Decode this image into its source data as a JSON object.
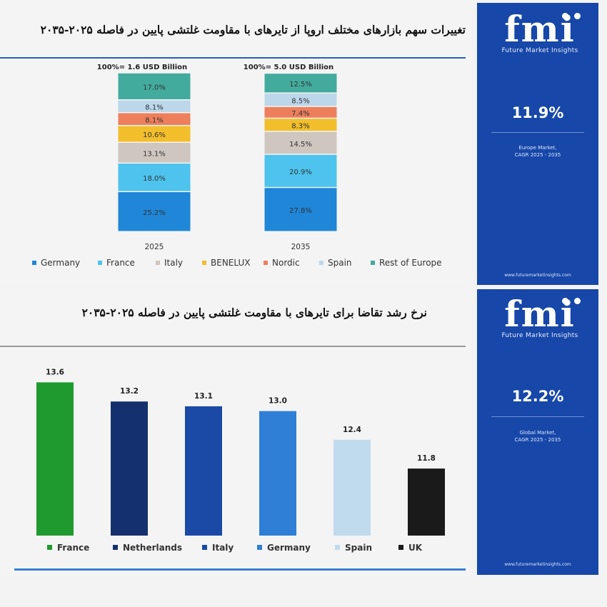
{
  "top_panel": {
    "title": "تغییرات سهم بازارهای مختلف اروپا از تایرهای با مقاومت غلتشی پایین در فاصله ۲۰۲۵-۲۰۳۵",
    "legend": [
      {
        "label": "Germany",
        "color": "#1f86d8"
      },
      {
        "label": "France",
        "color": "#4dc3ee"
      },
      {
        "label": "Italy",
        "color": "#cfc6c0"
      },
      {
        "label": "BENELUX",
        "color": "#f2be2b"
      },
      {
        "label": "Nordic",
        "color": "#ee7f5c"
      },
      {
        "label": "Spain",
        "color": "#bcd7ea"
      },
      {
        "label": "Rest of Europe",
        "color": "#43ab9e"
      }
    ]
  },
  "bottom_panel": {
    "title": "نرخ رشد تقاضا برای تایرهای با مقاومت غلتشی پایین در فاصله ۲۰۲۵-۲۰۳۵"
  },
  "side_top": {
    "logo": "fmi",
    "brand": "Future Market Insights",
    "kpi": "11.9%",
    "kpi_line1": "Europe Market,",
    "kpi_line2": "CAGR 2025 - 2035",
    "url": "www.futuremarketinsights.com"
  },
  "side_bottom": {
    "logo": "fmi",
    "brand": "Future Market Insights",
    "kpi": "12.2%",
    "kpi_line1": "Global Market,",
    "kpi_line2": "CAGR 2025 - 2035",
    "url": "www.futuremarketinsights.com"
  },
  "colors": {
    "sidebar": "#1747a8",
    "rule_top": "#2a5fb5",
    "rule_bottom": "#9a9a9a"
  },
  "chart_data": [
    {
      "type": "bar",
      "stacked": true,
      "percent": true,
      "categories": [
        "2025",
        "2035"
      ],
      "headers": [
        "100%= 1.6 USD Billion",
        "100%= 5.0 USD Billion"
      ],
      "series": [
        {
          "name": "Germany",
          "color": "#1f86d8",
          "values": [
            25.2,
            27.8
          ],
          "labels": [
            "25.2%",
            "27.8%"
          ]
        },
        {
          "name": "France",
          "color": "#4dc3ee",
          "values": [
            18.0,
            20.9
          ],
          "labels": [
            "18.0%",
            "20.9%"
          ]
        },
        {
          "name": "Italy",
          "color": "#cfc6c0",
          "values": [
            13.1,
            14.5
          ],
          "labels": [
            "13.1%",
            "14.5%"
          ]
        },
        {
          "name": "BENELUX",
          "color": "#f2be2b",
          "values": [
            10.6,
            8.3
          ],
          "labels": [
            "10.6%",
            "8.3%"
          ]
        },
        {
          "name": "Nordic",
          "color": "#ee7f5c",
          "values": [
            8.1,
            7.4
          ],
          "labels": [
            "8.1%",
            "7.4%"
          ]
        },
        {
          "name": "Spain",
          "color": "#bcd7ea",
          "values": [
            8.1,
            8.5
          ],
          "labels": [
            "8.1%",
            "8.5%"
          ]
        },
        {
          "name": "Rest of Europe",
          "color": "#43ab9e",
          "values": [
            17.0,
            12.5
          ],
          "labels": [
            "17.0%",
            "12.5%"
          ]
        }
      ]
    },
    {
      "type": "bar",
      "categories": [
        "France",
        "Netherlands",
        "Italy",
        "Germany",
        "Spain",
        "UK"
      ],
      "values": [
        13.6,
        13.2,
        13.1,
        13.0,
        12.4,
        11.8
      ],
      "labels": [
        "13.6",
        "13.2",
        "13.1",
        "13.0",
        "12.4",
        "11.8"
      ],
      "colors": [
        "#1f9a2e",
        "#14306e",
        "#1a4aa6",
        "#2f7fd6",
        "#c0daee",
        "#1a1a1a"
      ],
      "ylim": [
        10.4,
        13.8
      ]
    }
  ]
}
